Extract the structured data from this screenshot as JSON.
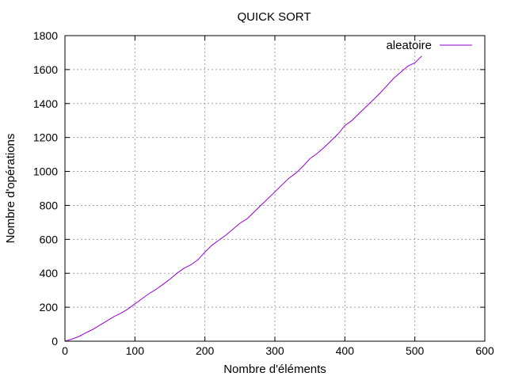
{
  "chart_data": {
    "type": "line",
    "title": "QUICK SORT",
    "xlabel": "Nombre d'éléments",
    "ylabel": "Nombre d'opérations",
    "xlim": [
      0,
      600
    ],
    "ylim": [
      0,
      1800
    ],
    "x_ticks": [
      0,
      100,
      200,
      300,
      400,
      500,
      600
    ],
    "y_ticks": [
      0,
      200,
      400,
      600,
      800,
      1000,
      1200,
      1400,
      1600,
      1800
    ],
    "grid": true,
    "legend_position": "top-right",
    "series": [
      {
        "name": "aleatoire",
        "color": "#9400d3",
        "x": [
          0,
          10,
          20,
          30,
          40,
          50,
          60,
          70,
          80,
          90,
          100,
          110,
          120,
          130,
          140,
          150,
          160,
          170,
          180,
          190,
          200,
          210,
          220,
          230,
          240,
          250,
          260,
          270,
          280,
          290,
          300,
          310,
          320,
          330,
          340,
          350,
          360,
          370,
          380,
          390,
          400,
          410,
          420,
          430,
          440,
          450,
          460,
          470,
          480,
          490,
          500,
          510
        ],
        "y": [
          0,
          12,
          28,
          50,
          70,
          95,
          120,
          145,
          165,
          190,
          220,
          250,
          280,
          305,
          335,
          365,
          400,
          430,
          450,
          480,
          525,
          565,
          595,
          625,
          660,
          695,
          720,
          760,
          800,
          840,
          880,
          920,
          960,
          990,
          1030,
          1075,
          1105,
          1140,
          1180,
          1220,
          1270,
          1300,
          1340,
          1380,
          1420,
          1460,
          1505,
          1550,
          1585,
          1620,
          1640,
          1680
        ]
      }
    ]
  }
}
